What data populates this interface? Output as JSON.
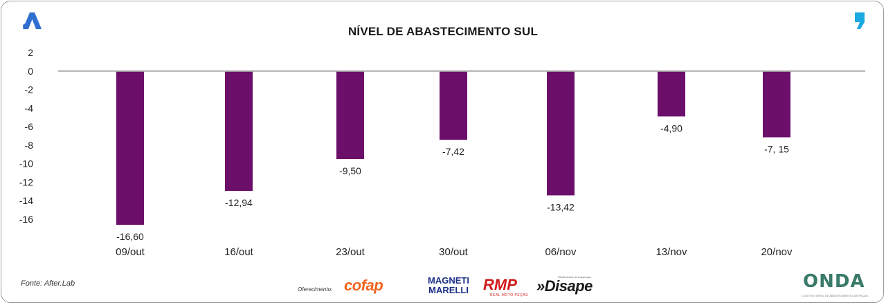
{
  "chart_data": {
    "type": "bar",
    "title": "NÍVEL DE ABASTECIMENTO SUL",
    "categories": [
      "09/out",
      "16/out",
      "23/out",
      "30/out",
      "06/nov",
      "13/nov",
      "20/nov"
    ],
    "values": [
      -16.6,
      -12.94,
      -9.5,
      -7.42,
      -13.42,
      -4.9,
      -7.15
    ],
    "value_labels": [
      "-16,60",
      "-12,94",
      "-9,50",
      "-7,42",
      "-13,42",
      "-4,90",
      "-7, 15"
    ],
    "y_ticks": [
      "2",
      "0",
      "-2",
      "-4",
      "-6",
      "-8",
      "-10",
      "-12",
      "-14",
      "-16"
    ],
    "ylim": [
      -16,
      2
    ],
    "bar_color": "#6c0f6b",
    "grid": false,
    "xlabel": "",
    "ylabel": ""
  },
  "footer": {
    "source": "Fonte: After.Lab",
    "offer_label": "Oferecimento:",
    "sponsors": {
      "cofap": "cofap",
      "magneti": "MAGNETI MARELLI",
      "rmp": "RMP",
      "rmp_sub": "REAL MOTO PEÇAS",
      "disape": "»Disape",
      "disape_sub": "Distribuidora de Autopeças"
    },
    "onda": "ONDA",
    "onda_sub": "COLETIVO NÍVEL DE ABASTECIMENTO DE PEÇAS"
  },
  "icons": {
    "left_logo": "a-brand-icon",
    "right_logo": "quote-brand-icon",
    "brand_blue": "#2f6fd0",
    "accent_cyan": "#1aa9e0"
  }
}
